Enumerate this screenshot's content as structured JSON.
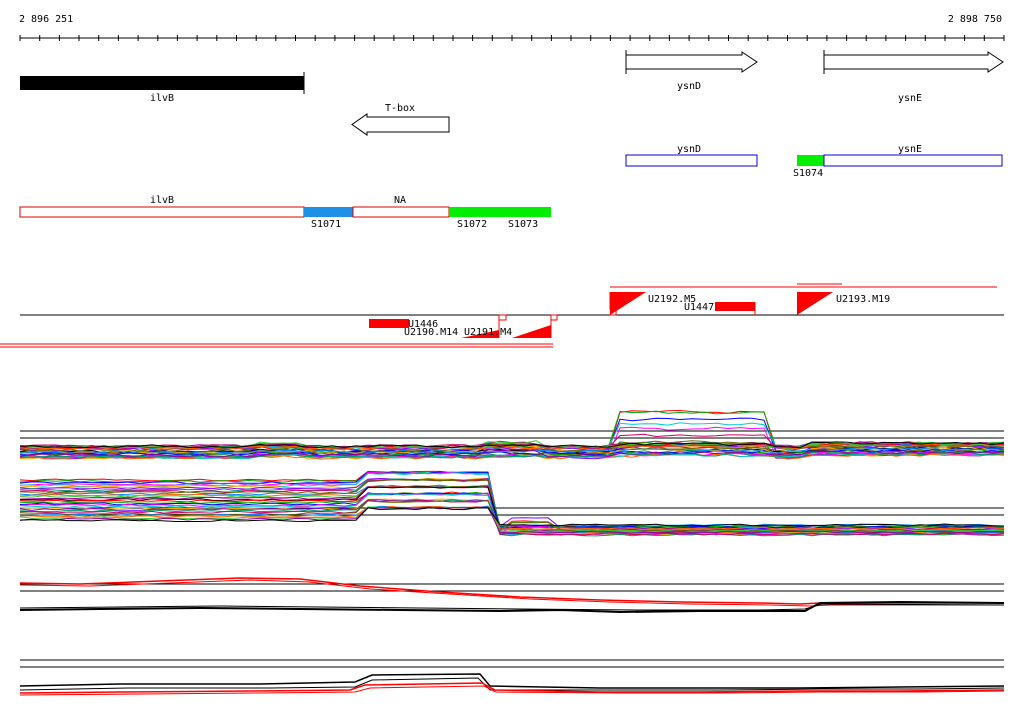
{
  "coordinates": {
    "start": "2 896 251",
    "end": "2 898 750"
  },
  "colors": {
    "gene": "#000000",
    "box_outline_red": "#e00000",
    "box_outline_blue": "#0000cc",
    "segment_blue": "#1e90e6",
    "segment_green": "#00ee00",
    "feature_red": "#ff0000"
  },
  "genes": {
    "ilvB": "ilvB",
    "tbox": "T-box",
    "ysnD": "ysnD",
    "ysnE": "ysnE"
  },
  "transcripts": {
    "ysnD": "ysnD",
    "ysnE": "ysnE",
    "ilvB": "ilvB",
    "na": "NA",
    "segments": {
      "s1071": "S1071",
      "s1072": "S1072",
      "s1073": "S1073",
      "s1074": "S1074"
    }
  },
  "features": {
    "u2192": "U2192.M5",
    "u1447": "U1447",
    "u2193": "U2193.M19",
    "u1446": "U1446",
    "u2190": "U2190.M14",
    "u2191": "U2191.M4"
  }
}
